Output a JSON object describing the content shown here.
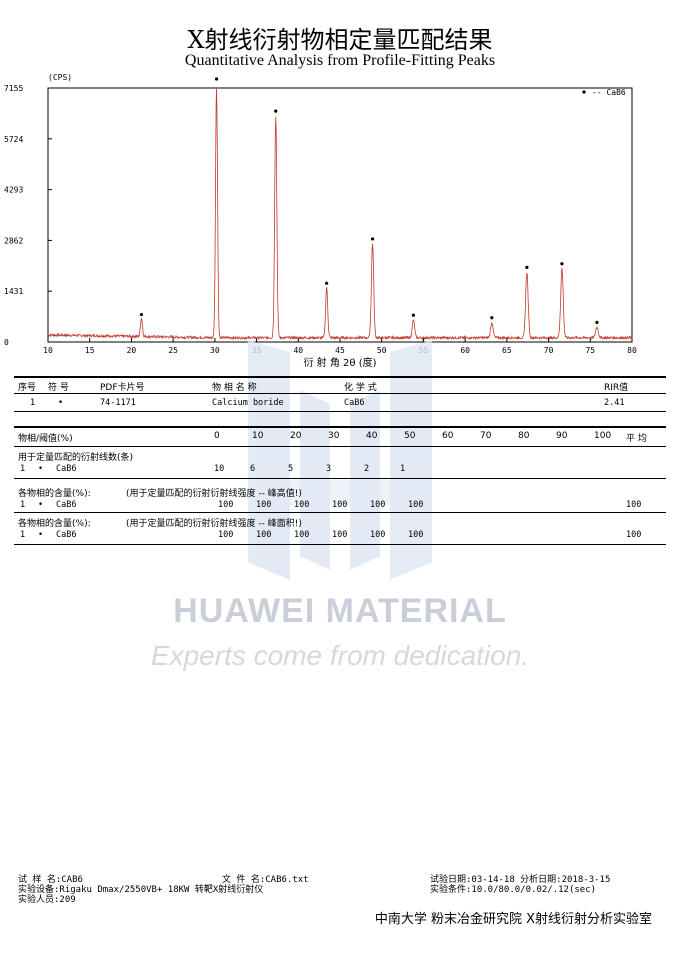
{
  "title_cn": "X射线衍射物相定量匹配结果",
  "title_en": "Quantitative Analysis from Profile-Fitting Peaks",
  "chart_data": {
    "type": "line",
    "ylabel": "(CPS)",
    "xlabel": "衍 射 角 2θ (度)",
    "x_ticks": [
      10,
      15,
      20,
      25,
      30,
      35,
      40,
      45,
      50,
      55,
      60,
      65,
      70,
      75,
      80
    ],
    "y_ticks": [
      0,
      1431,
      2862,
      4293,
      5724,
      7155
    ],
    "xlim": [
      10,
      80
    ],
    "ylim": [
      0,
      7155
    ],
    "legend": {
      "marker": "•",
      "label": "-- CaB6",
      "position": "top-right"
    },
    "peaks": [
      {
        "x": 21.2,
        "y": 520,
        "w": 0.12
      },
      {
        "x": 30.2,
        "y": 7155,
        "w": 0.12
      },
      {
        "x": 37.3,
        "y": 6250,
        "w": 0.13
      },
      {
        "x": 43.4,
        "y": 1400,
        "w": 0.13
      },
      {
        "x": 48.9,
        "y": 2650,
        "w": 0.14
      },
      {
        "x": 53.8,
        "y": 500,
        "w": 0.14
      },
      {
        "x": 63.2,
        "y": 430,
        "w": 0.15
      },
      {
        "x": 67.4,
        "y": 1850,
        "w": 0.15
      },
      {
        "x": 71.6,
        "y": 1950,
        "w": 0.15
      },
      {
        "x": 75.8,
        "y": 300,
        "w": 0.16
      }
    ],
    "markers_x": [
      21.2,
      30.2,
      37.3,
      43.4,
      48.9,
      53.8,
      63.2,
      67.4,
      71.6,
      75.8
    ],
    "baseline": 120
  },
  "phase_table": {
    "headers": [
      "序号",
      "符 号",
      "PDF卡片号",
      "物 相 名 称",
      "化  学  式",
      "RIR值"
    ],
    "rows": [
      {
        "no": "1",
        "symbol": "•",
        "pdf": "74-1171",
        "name": "Calcium boride",
        "formula": "CaB6",
        "rir": "2.41"
      }
    ]
  },
  "threshold": {
    "label": "物相/阈值(%)",
    "values": [
      "0",
      "10",
      "20",
      "30",
      "40",
      "50",
      "60",
      "70",
      "80",
      "90",
      "100"
    ],
    "avg_label": "平 均",
    "lines_label": "用于定量匹配的衍射线数(条)",
    "lines_row": {
      "no": "1",
      "sym": "•",
      "name": "CaB6",
      "values": [
        "10",
        "6",
        "5",
        "3",
        "2",
        "1"
      ]
    }
  },
  "content_height": {
    "label": "各物相的含量(%):",
    "note": "(用于定量匹配的衍射衍射线强度 -- 峰高值!)",
    "row": {
      "no": "1",
      "sym": "•",
      "name": "CaB6",
      "values": [
        "100",
        "100",
        "100",
        "100",
        "100",
        "100"
      ],
      "avg": "100"
    }
  },
  "content_area": {
    "label": "各物相的含量(%):",
    "note": "(用于定量匹配的衍射衍射线强度 -- 峰面积!)",
    "row": {
      "no": "1",
      "sym": "•",
      "name": "CaB6",
      "values": [
        "100",
        "100",
        "100",
        "100",
        "100",
        "100"
      ],
      "avg": "100"
    }
  },
  "watermark": {
    "text": "HUAWEI MATERIAL",
    "sub": "Experts come from dedication."
  },
  "footer": {
    "sample": "试 样 名:CAB6",
    "file": "文 件 名:CAB6.txt",
    "test_date": "试验日期:03-14-18  分析日期:2018-3-15",
    "device": "实验设备:Rigaku Dmax/2550VB+ 18KW 转靶X射线衍射仪",
    "conditions": "实验条件:10.0/80.0/0.02/.12(sec)",
    "operator": "实验人员:209",
    "lab": "中南大学 粉末冶金研究院 X射线衍射分析实验室"
  }
}
